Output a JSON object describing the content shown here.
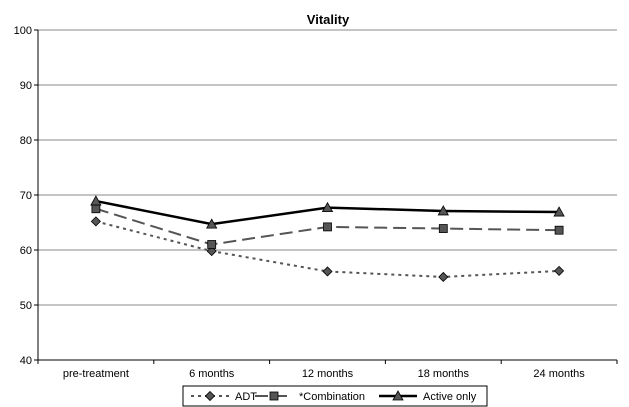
{
  "chart_data": {
    "type": "line",
    "title": "Vitality",
    "xlabel": "",
    "ylabel": "",
    "categories": [
      "pre-treatment",
      "6 months",
      "12 months",
      "18 months",
      "24 months"
    ],
    "ylim": [
      40,
      100
    ],
    "yticks": [
      40,
      50,
      60,
      70,
      80,
      90,
      100
    ],
    "grid": "horizontal",
    "legend": "bottom",
    "series": [
      {
        "name": "ADT",
        "values": [
          65.2,
          59.8,
          56.1,
          55.1,
          56.2
        ],
        "color": "#555555",
        "style": "dotted",
        "marker": "diamond"
      },
      {
        "name": "*Combination",
        "values": [
          67.5,
          61.0,
          64.2,
          63.9,
          63.6
        ],
        "color": "#555555",
        "style": "dashed",
        "marker": "square"
      },
      {
        "name": "Active only",
        "values": [
          68.9,
          64.7,
          67.7,
          67.1,
          66.9
        ],
        "color": "#000000",
        "style": "solid",
        "marker": "triangle"
      }
    ]
  }
}
